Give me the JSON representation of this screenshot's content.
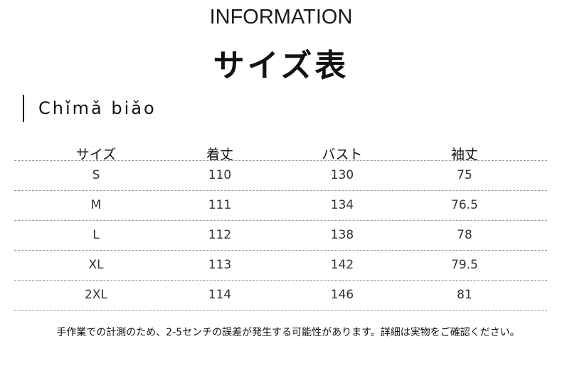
{
  "header": {
    "title_en": "INFORMATION",
    "title_jp": "サイズ表",
    "subtitle": "Chǐmǎ biǎo"
  },
  "table": {
    "columns": [
      "サイズ",
      "着丈",
      "バスト",
      "袖丈"
    ],
    "rows": [
      [
        "S",
        "110",
        "130",
        "75"
      ],
      [
        "M",
        "111",
        "134",
        "76.5"
      ],
      [
        "L",
        "112",
        "138",
        "78"
      ],
      [
        "XL",
        "113",
        "142",
        "79.5"
      ],
      [
        "2XL",
        "114",
        "146",
        "81"
      ]
    ]
  },
  "note": "手作業での計測のため、2-5センチの誤差が発生する可能性があります。詳細は実物をご確認ください。"
}
